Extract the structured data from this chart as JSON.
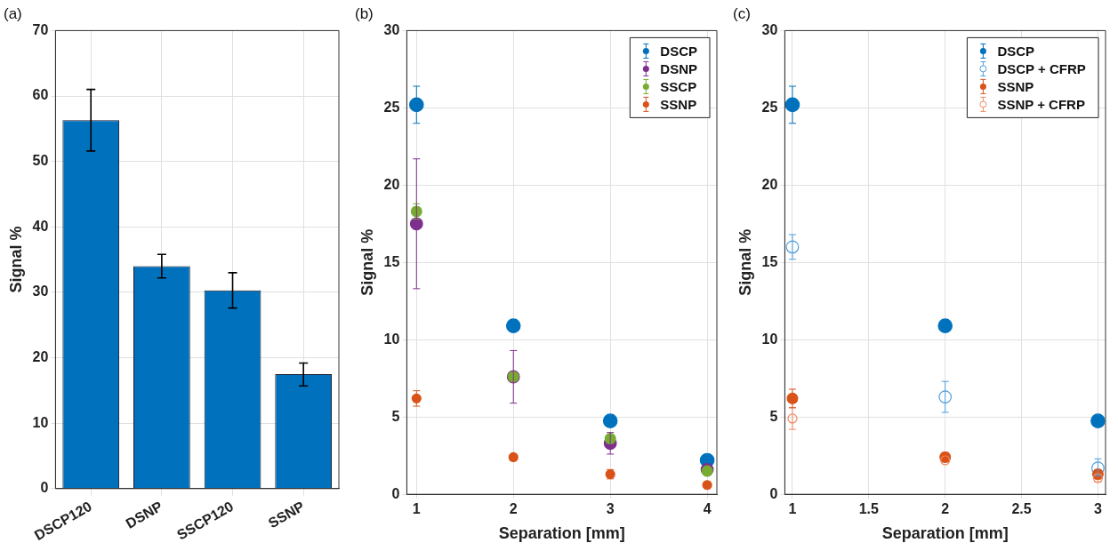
{
  "chart_data": [
    {
      "type": "bar",
      "title": "(a)",
      "ylabel": "Signal %",
      "categories": [
        "DSCP120",
        "DSNP",
        "SSCP120",
        "SSNP"
      ],
      "values": [
        56.3,
        34,
        30.3,
        17.5
      ],
      "errors": [
        [
          51.6,
          61
        ],
        [
          32.2,
          35.8
        ],
        [
          27.6,
          33
        ],
        [
          15.7,
          19.2
        ]
      ],
      "color": "#0072bd",
      "ylim": [
        0,
        70
      ],
      "yticks": [
        0,
        10,
        20,
        30,
        40,
        50,
        60,
        70
      ],
      "grid": true
    },
    {
      "type": "scatter",
      "title": "(b)",
      "xlabel": "Separation [mm]",
      "ylabel": "Signal %",
      "x": [
        1,
        2,
        3,
        4
      ],
      "xlim": [
        0.9,
        4.1
      ],
      "xticks": [
        1,
        2,
        3,
        4
      ],
      "ylim": [
        0,
        30
      ],
      "yticks": [
        0,
        5,
        10,
        15,
        20,
        25,
        30
      ],
      "grid": true,
      "legend": "top right",
      "marker": "circle",
      "series": [
        {
          "name": "DSCP",
          "color": "#0072bd",
          "values": [
            25.2,
            10.9,
            4.75,
            2.2
          ],
          "errors": [
            [
              24,
              26.4
            ],
            [
              10.5,
              11.3
            ],
            null,
            null
          ]
        },
        {
          "name": "DSNP",
          "color": "#7e2f8e",
          "values": [
            17.5,
            7.6,
            3.3,
            1.6
          ],
          "errors": [
            [
              13.3,
              21.7
            ],
            [
              5.9,
              9.3
            ],
            [
              2.6,
              4.0
            ],
            null
          ]
        },
        {
          "name": "SSCP",
          "color": "#77ac30",
          "values": [
            18.3,
            7.6,
            3.6,
            1.5
          ],
          "errors": [
            [
              17.8,
              18.8
            ],
            null,
            null,
            null
          ]
        },
        {
          "name": "SSNP",
          "color": "#d95319",
          "values": [
            6.2,
            2.4,
            1.3,
            0.6
          ],
          "errors": [
            [
              5.7,
              6.7
            ],
            null,
            [
              1.0,
              1.6
            ],
            null
          ]
        }
      ]
    },
    {
      "type": "scatter",
      "title": "(c)",
      "xlabel": "Separation [mm]",
      "ylabel": "Signal %",
      "x": [
        1,
        2,
        3
      ],
      "xlim": [
        0.95,
        3.05
      ],
      "xticks": [
        1,
        1.5,
        2,
        2.5,
        3
      ],
      "ylim": [
        0,
        30
      ],
      "yticks": [
        0,
        5,
        10,
        15,
        20,
        25,
        30
      ],
      "grid": true,
      "legend": "top right",
      "marker": "circle",
      "series": [
        {
          "name": "DSCP",
          "color": "#0072bd",
          "values": [
            25.2,
            10.9,
            4.75
          ],
          "errors": [
            [
              24,
              26.4
            ],
            [
              10.5,
              11.3
            ],
            null
          ]
        },
        {
          "name": "DSCP + CFRP",
          "color": "#4d9fe0",
          "marker": "circle-open",
          "values": [
            16,
            6.3,
            1.7
          ],
          "errors": [
            [
              15.2,
              16.8
            ],
            [
              5.3,
              7.3
            ],
            [
              1.2,
              2.3
            ]
          ]
        },
        {
          "name": "SSNP",
          "color": "#d95319",
          "values": [
            6.2,
            2.4,
            1.3
          ],
          "errors": [
            [
              5.6,
              6.8
            ],
            [
              2.1,
              2.7
            ],
            [
              1.0,
              1.6
            ]
          ]
        },
        {
          "name": "SSNP + CFRP",
          "color": "#f08a60",
          "marker": "circle-open",
          "values": [
            4.9,
            2.2,
            1.05
          ],
          "errors": [
            [
              4.2,
              5.6
            ],
            null,
            [
              0.8,
              1.3
            ]
          ]
        }
      ]
    }
  ]
}
